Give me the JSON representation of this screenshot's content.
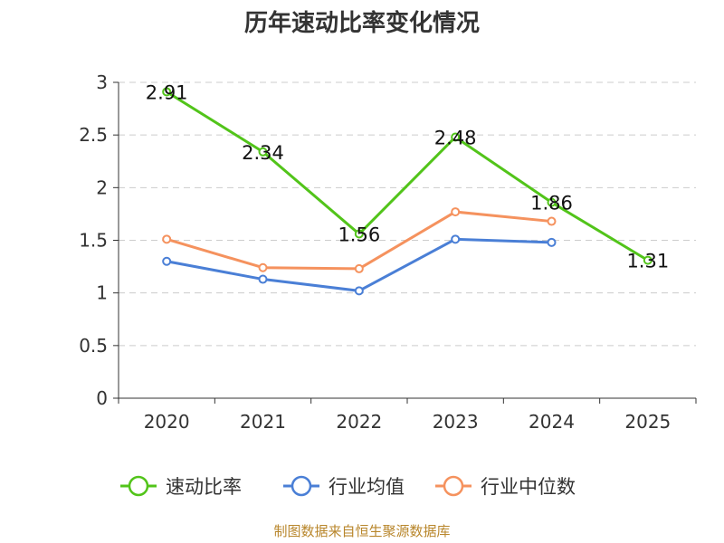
{
  "chart_data": {
    "type": "line",
    "title": "历年速动比率变化情况",
    "categories": [
      "2020",
      "2021",
      "2022",
      "2023",
      "2024",
      "2025"
    ],
    "y_ticks": [
      "0",
      "0.5",
      "1",
      "1.5",
      "2",
      "2.5",
      "3"
    ],
    "ylim": [
      0,
      3
    ],
    "grid": true,
    "legend_position": "bottom",
    "series": [
      {
        "name": "速动比率",
        "color": "#52c41a",
        "values": [
          2.91,
          2.34,
          1.56,
          2.48,
          1.86,
          1.31
        ],
        "data_labels": [
          "2.91",
          "2.34",
          "1.56",
          "2.48",
          "1.86",
          "1.31"
        ]
      },
      {
        "name": "行业均值",
        "color": "#4a7fd6",
        "values": [
          1.3,
          1.13,
          1.02,
          1.51,
          1.48,
          null
        ]
      },
      {
        "name": "行业中位数",
        "color": "#f5925e",
        "values": [
          1.51,
          1.24,
          1.23,
          1.77,
          1.68,
          null
        ]
      }
    ],
    "source": "制图数据来自恒生聚源数据库"
  }
}
